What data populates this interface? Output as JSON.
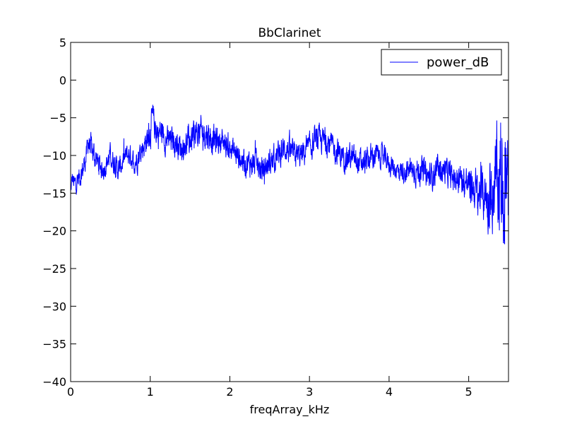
{
  "chart_data": {
    "type": "line",
    "title": "BbClarinet",
    "xlabel": "freqArray_kHz",
    "ylabel": "",
    "xlim": [
      0,
      5.5
    ],
    "ylim": [
      -40,
      5
    ],
    "xticks": [
      0,
      1,
      2,
      3,
      4,
      5
    ],
    "yticks": [
      5,
      0,
      -5,
      -10,
      -15,
      -20,
      -25,
      -30,
      -35,
      -40
    ],
    "xtick_labels": [
      "0",
      "1",
      "2",
      "3",
      "4",
      "5"
    ],
    "ytick_labels": [
      "5",
      "0",
      "−5",
      "−10",
      "−15",
      "−20",
      "−25",
      "−30",
      "−35",
      "−40"
    ],
    "grid": false,
    "legend": {
      "position": "top-right",
      "entries": [
        "power_dB"
      ]
    },
    "series": [
      {
        "name": "power_dB",
        "color": "#0000ff",
        "x": [
          0.0,
          0.02,
          0.05,
          0.1,
          0.15,
          0.2,
          0.22,
          0.25,
          0.3,
          0.35,
          0.4,
          0.45,
          0.5,
          0.55,
          0.6,
          0.65,
          0.7,
          0.75,
          0.8,
          0.85,
          0.9,
          0.95,
          1.0,
          1.03,
          1.05,
          1.1,
          1.15,
          1.2,
          1.3,
          1.4,
          1.5,
          1.6,
          1.7,
          1.8,
          1.9,
          2.0,
          2.1,
          2.2,
          2.3,
          2.4,
          2.5,
          2.6,
          2.7,
          2.8,
          2.9,
          3.0,
          3.1,
          3.2,
          3.3,
          3.4,
          3.5,
          3.6,
          3.7,
          3.8,
          3.9,
          4.0,
          4.1,
          4.2,
          4.3,
          4.4,
          4.5,
          4.6,
          4.7,
          4.8,
          4.9,
          5.0,
          5.05,
          5.1,
          5.15,
          5.2,
          5.25,
          5.3,
          5.35,
          5.4,
          5.43,
          5.45,
          5.47,
          5.5
        ],
        "y": [
          -15,
          -13,
          -14,
          -13,
          -12,
          -10,
          -8,
          -9,
          -10,
          -11,
          -12,
          -11,
          -10,
          -11,
          -12,
          -11,
          -10,
          -10,
          -11,
          -10,
          -9,
          -8,
          -7,
          -5,
          -6,
          -7,
          -7,
          -8,
          -8,
          -9,
          -8,
          -7,
          -7,
          -8,
          -8,
          -9,
          -10,
          -11,
          -11,
          -12,
          -11,
          -10,
          -9,
          -10,
          -10,
          -9,
          -8,
          -8,
          -9,
          -10,
          -10,
          -11,
          -11,
          -10,
          -10,
          -11,
          -12,
          -12,
          -12,
          -12,
          -13,
          -12,
          -12,
          -13,
          -13,
          -14,
          -14,
          -15,
          -15,
          -15,
          -16,
          -14,
          -14,
          -13,
          -13,
          -12,
          -14,
          -15
        ],
        "spread": [
          1.5,
          2,
          2.5,
          2.5,
          2.5,
          2.5,
          3,
          3,
          3,
          2.5,
          2.5,
          2.5,
          2.5,
          2.5,
          2.5,
          2.5,
          2.5,
          2.5,
          2.5,
          3,
          3,
          3,
          3.5,
          3.5,
          3.5,
          3.5,
          3.5,
          3,
          3,
          3,
          3.5,
          3.5,
          3.5,
          3.5,
          3,
          3,
          3,
          3,
          3,
          3,
          3,
          3,
          3,
          3,
          3,
          3,
          3,
          3,
          3,
          3,
          3,
          3,
          3,
          3,
          2.5,
          2.5,
          2.5,
          2.5,
          3,
          3,
          3,
          3,
          3,
          3,
          3.5,
          4,
          4.5,
          5,
          5,
          6,
          7,
          9,
          11,
          13,
          16,
          18,
          15,
          12
        ]
      }
    ]
  }
}
